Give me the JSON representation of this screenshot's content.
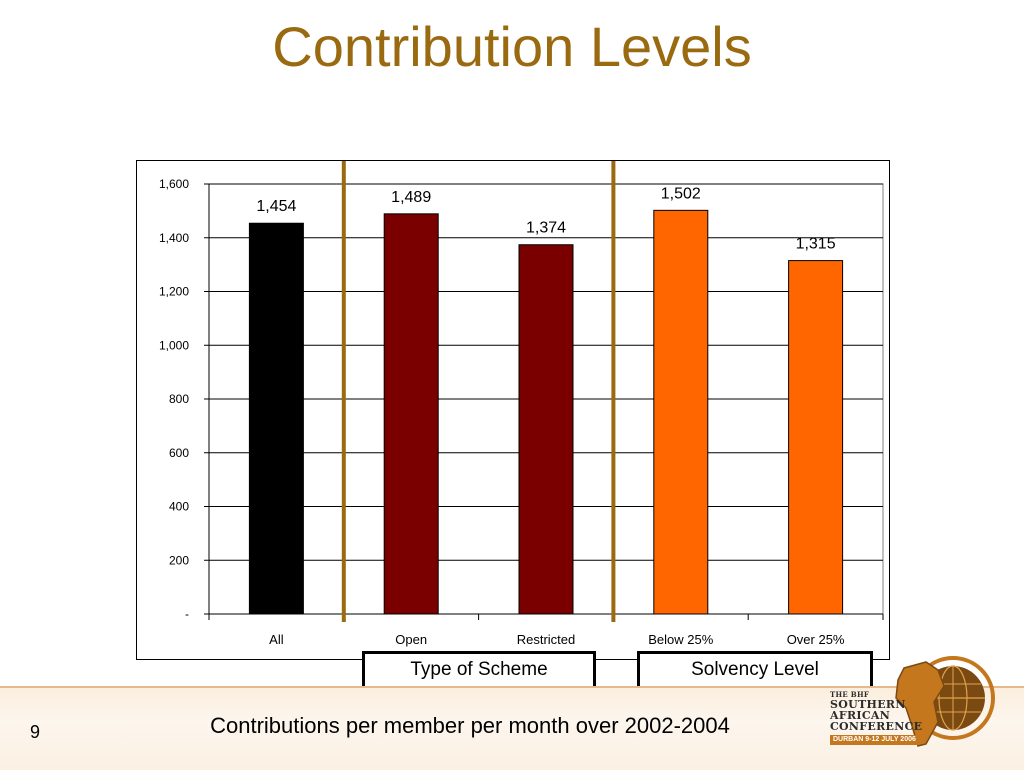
{
  "slide": {
    "title": "Contribution Levels",
    "subtitle": "Contributions per member per month over 2002-2004",
    "page_number": "9"
  },
  "group_labels": {
    "type_of_scheme": "Type of Scheme",
    "solvency_level": "Solvency Level"
  },
  "logo": {
    "line1": "THE BHF",
    "line2": "SOUTHERN",
    "line3": "AFRICAN",
    "line4": "CONFERENCE",
    "line5": "DURBAN  9-12 JULY 2006"
  },
  "colors": {
    "title": "#9a6a10",
    "separator": "#9a6a10",
    "all": "#000000",
    "scheme": "#7a0000",
    "solvency": "#ff6600"
  },
  "chart_data": {
    "type": "bar",
    "categories": [
      "All",
      "Open",
      "Restricted",
      "Below 25%",
      "Over 25%"
    ],
    "values": [
      1454,
      1489,
      1374,
      1502,
      1315
    ],
    "data_labels": [
      "1,454",
      "1,489",
      "1,374",
      "1,502",
      "1,315"
    ],
    "bar_colors": [
      "#000000",
      "#7a0000",
      "#7a0000",
      "#ff6600",
      "#ff6600"
    ],
    "ylim": [
      0,
      1600
    ],
    "yticks": [
      0,
      200,
      400,
      600,
      800,
      1000,
      1200,
      1400,
      1600
    ],
    "ytick_labels": [
      "-",
      "200",
      "400",
      "600",
      "800",
      "1,000",
      "1,200",
      "1,400",
      "1,600"
    ],
    "grid": true,
    "title": "",
    "xlabel": "",
    "ylabel": ""
  }
}
